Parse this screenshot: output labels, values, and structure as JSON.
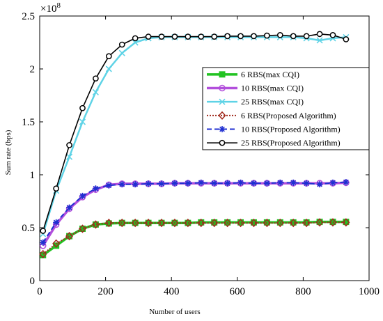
{
  "chart_data": {
    "type": "line",
    "title": "",
    "xlabel": "Number of users",
    "ylabel": "Sum rate (bps)",
    "y_multiplier_label": "×10",
    "y_multiplier_exp": "8",
    "xlim": [
      0,
      1000
    ],
    "ylim": [
      0,
      2.5
    ],
    "xticks": [
      0,
      200,
      400,
      600,
      800,
      1000
    ],
    "yticks": [
      0,
      0.5,
      1,
      1.5,
      2,
      2.5
    ],
    "xtick_labels": [
      "0",
      "200",
      "400",
      "600",
      "800",
      "1000"
    ],
    "ytick_labels": [
      "0",
      "0.5",
      "1",
      "1.5",
      "2",
      "2.5"
    ],
    "grid": false,
    "legend_position": "upper-right",
    "x": [
      10,
      50,
      90,
      130,
      170,
      210,
      250,
      290,
      330,
      370,
      410,
      450,
      490,
      530,
      570,
      610,
      650,
      690,
      730,
      770,
      810,
      850,
      890,
      930
    ],
    "series": [
      {
        "name": "6 RBS(max CQI)",
        "color": "#22c322",
        "line": "solid",
        "width": 3.5,
        "marker": "square",
        "values": [
          0.24,
          0.33,
          0.42,
          0.49,
          0.53,
          0.54,
          0.545,
          0.545,
          0.545,
          0.545,
          0.545,
          0.545,
          0.55,
          0.55,
          0.55,
          0.55,
          0.55,
          0.55,
          0.55,
          0.55,
          0.55,
          0.555,
          0.555,
          0.555
        ]
      },
      {
        "name": "10 RBS(max CQI)",
        "color": "#b24fdc",
        "line": "solid",
        "width": 3.5,
        "marker": "circle",
        "values": [
          0.33,
          0.53,
          0.68,
          0.79,
          0.86,
          0.905,
          0.915,
          0.915,
          0.915,
          0.915,
          0.92,
          0.92,
          0.92,
          0.92,
          0.92,
          0.92,
          0.92,
          0.92,
          0.92,
          0.92,
          0.92,
          0.92,
          0.92,
          0.925
        ]
      },
      {
        "name": "25 RBS(max CQI)",
        "color": "#5ed3e6",
        "line": "solid",
        "width": 2.5,
        "marker": "x",
        "values": [
          0.44,
          0.85,
          1.17,
          1.5,
          1.78,
          2.0,
          2.15,
          2.25,
          2.29,
          2.3,
          2.3,
          2.3,
          2.3,
          2.3,
          2.3,
          2.3,
          2.3,
          2.3,
          2.3,
          2.3,
          2.29,
          2.27,
          2.29,
          2.3
        ]
      },
      {
        "name": "6 RBS(Proposed Algorithm)",
        "color": "#a0291c",
        "line": "dotted",
        "width": 2,
        "marker": "diamond",
        "values": [
          0.25,
          0.35,
          0.42,
          0.49,
          0.53,
          0.545,
          0.545,
          0.545,
          0.545,
          0.545,
          0.545,
          0.545,
          0.545,
          0.545,
          0.545,
          0.545,
          0.545,
          0.545,
          0.545,
          0.545,
          0.545,
          0.55,
          0.55,
          0.55
        ]
      },
      {
        "name": "10 RBS(Proposed Algorithm)",
        "color": "#1f2fd1",
        "line": "dashed",
        "width": 2,
        "marker": "star",
        "values": [
          0.36,
          0.55,
          0.69,
          0.8,
          0.87,
          0.9,
          0.91,
          0.91,
          0.915,
          0.915,
          0.92,
          0.92,
          0.925,
          0.92,
          0.92,
          0.925,
          0.92,
          0.92,
          0.925,
          0.925,
          0.92,
          0.91,
          0.925,
          0.93
        ]
      },
      {
        "name": "25 RBS(Proposed Algorithm)",
        "color": "#000000",
        "line": "solid",
        "width": 1.6,
        "marker": "circle-open",
        "values": [
          0.47,
          0.87,
          1.28,
          1.63,
          1.91,
          2.12,
          2.23,
          2.29,
          2.305,
          2.305,
          2.305,
          2.305,
          2.305,
          2.305,
          2.31,
          2.31,
          2.31,
          2.315,
          2.32,
          2.31,
          2.31,
          2.33,
          2.32,
          2.28
        ]
      }
    ]
  }
}
